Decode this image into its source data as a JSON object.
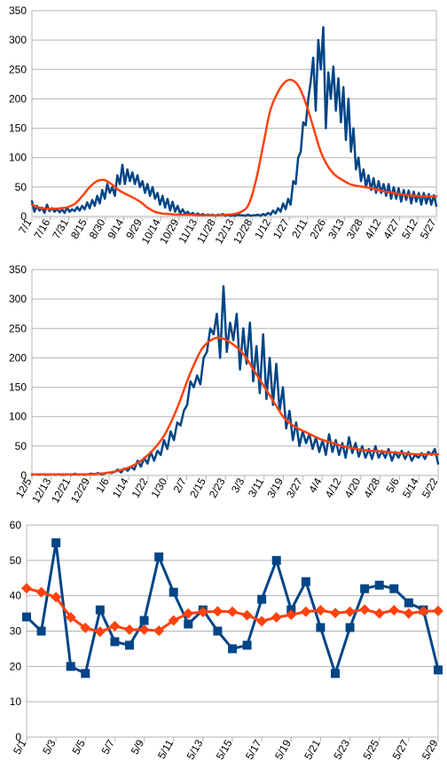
{
  "chart_data": [
    {
      "type": "line",
      "ylim": [
        0,
        350
      ],
      "yticks": [
        "0",
        "50",
        "100",
        "150",
        "200",
        "250",
        "300",
        "350"
      ],
      "xtick_labels": [
        "7/1",
        "7/16",
        "7/31",
        "8/15",
        "8/30",
        "9/14",
        "9/29",
        "10/14",
        "10/29",
        "11/13",
        "11/28",
        "12/13",
        "12/28",
        "1/12",
        "1/27",
        "2/11",
        "2/26",
        "3/13",
        "3/28",
        "4/12",
        "4/27",
        "5/12",
        "5/27"
      ],
      "grid": "horizontal",
      "series": [
        {
          "color": "#004586",
          "style": "line",
          "values": [
            26,
            8,
            18,
            10,
            15,
            6,
            20,
            9,
            14,
            8,
            13,
            7,
            12,
            6,
            15,
            8,
            12,
            9,
            16,
            10,
            18,
            12,
            24,
            14,
            28,
            18,
            35,
            22,
            45,
            30,
            55,
            40,
            50,
            35,
            70,
            55,
            88,
            55,
            80,
            60,
            75,
            55,
            70,
            50,
            60,
            40,
            55,
            35,
            50,
            30,
            40,
            20,
            35,
            15,
            30,
            10,
            25,
            8,
            18,
            5,
            12,
            4,
            8,
            3,
            6,
            2,
            5,
            2,
            4,
            2,
            3,
            2,
            3,
            1,
            3,
            2,
            4,
            1,
            3,
            1,
            2,
            1,
            3,
            2,
            2,
            1,
            3,
            1,
            2,
            2,
            3,
            1,
            4,
            2,
            6,
            3,
            10,
            5,
            14,
            8,
            22,
            12,
            30,
            20,
            60,
            55,
            100,
            110,
            160,
            155,
            200,
            230,
            270,
            180,
            300,
            250,
            322,
            150,
            245,
            200,
            255,
            180,
            235,
            160,
            220,
            130,
            200,
            110,
            150,
            80,
            100,
            60,
            80,
            50,
            70,
            45,
            65,
            40,
            60,
            40,
            55,
            35,
            55,
            30,
            50,
            30,
            48,
            25,
            45,
            28,
            44,
            22,
            42,
            25,
            40,
            20,
            40,
            22,
            38,
            20,
            36,
            18
          ]
        },
        {
          "color": "#ff420e",
          "style": "smooth",
          "values": [
            20,
            15,
            13,
            13,
            14,
            16,
            22,
            35,
            50,
            60,
            62,
            55,
            45,
            38,
            32,
            25,
            15,
            8,
            5,
            4,
            3,
            3,
            3,
            2,
            2,
            2,
            2,
            3,
            4,
            8,
            20,
            60,
            120,
            180,
            210,
            228,
            232,
            220,
            190,
            150,
            110,
            85,
            70,
            62,
            55,
            52,
            50,
            48,
            45,
            42,
            40,
            38,
            36,
            35,
            34,
            34,
            34
          ]
        }
      ]
    },
    {
      "type": "line",
      "ylim": [
        0,
        350
      ],
      "yticks": [
        "0",
        "50",
        "100",
        "150",
        "200",
        "250",
        "300",
        "350"
      ],
      "xtick_labels": [
        "12/5",
        "12/13",
        "12/21",
        "12/29",
        "1/6",
        "1/14",
        "1/22",
        "1/30",
        "2/7",
        "2/15",
        "2/23",
        "3/3",
        "3/11",
        "3/19",
        "3/27",
        "4/4",
        "4/12",
        "4/20",
        "4/28",
        "5/6",
        "5/14",
        "5/22"
      ],
      "grid": "horizontal",
      "series": [
        {
          "color": "#004586",
          "style": "line",
          "values": [
            1,
            2,
            1,
            2,
            1,
            1,
            2,
            1,
            2,
            1,
            1,
            2,
            1,
            3,
            1,
            2,
            1,
            2,
            3,
            2,
            4,
            2,
            3,
            5,
            4,
            6,
            10,
            5,
            12,
            8,
            15,
            10,
            25,
            15,
            30,
            20,
            40,
            25,
            42,
            35,
            60,
            45,
            75,
            60,
            90,
            85,
            110,
            120,
            160,
            150,
            170,
            155,
            200,
            210,
            250,
            240,
            275,
            200,
            322,
            210,
            260,
            230,
            275,
            180,
            250,
            190,
            260,
            160,
            220,
            140,
            240,
            130,
            200,
            120,
            190,
            110,
            150,
            80,
            110,
            60,
            90,
            50,
            75,
            55,
            70,
            45,
            65,
            40,
            60,
            35,
            70,
            40,
            60,
            35,
            55,
            30,
            65,
            38,
            55,
            32,
            50,
            30,
            45,
            28,
            50,
            30,
            42,
            30,
            45,
            25,
            40,
            30,
            42,
            28,
            40,
            25,
            35,
            30,
            38,
            28,
            40,
            35,
            45,
            20
          ]
        },
        {
          "color": "#ff420e",
          "style": "smooth",
          "values": [
            2,
            2,
            2,
            2,
            2,
            2,
            2,
            2,
            2,
            3,
            4,
            6,
            9,
            13,
            19,
            27,
            38,
            52,
            70,
            95,
            125,
            160,
            190,
            215,
            228,
            234,
            232,
            225,
            215,
            200,
            180,
            160,
            140,
            120,
            100,
            88,
            80,
            74,
            68,
            62,
            58,
            54,
            50,
            47,
            45,
            43,
            42,
            41,
            40,
            39,
            38,
            37,
            36,
            36,
            36,
            36
          ]
        }
      ]
    },
    {
      "type": "line",
      "ylim": [
        0,
        60
      ],
      "yticks": [
        "0",
        "10",
        "20",
        "30",
        "40",
        "50",
        "60"
      ],
      "xtick_labels": [
        "5/1",
        "5/3",
        "5/5",
        "5/7",
        "5/9",
        "5/11",
        "5/13",
        "5/15",
        "5/17",
        "5/19",
        "5/21",
        "5/23",
        "5/25",
        "5/27",
        "5/29"
      ],
      "grid": "horizontal",
      "series": [
        {
          "color": "#004586",
          "marker": "square",
          "values": [
            34,
            30,
            55,
            20,
            18,
            36,
            27,
            26,
            33,
            51,
            41,
            32,
            36,
            30,
            25,
            26,
            39,
            50,
            36,
            44,
            31,
            18,
            31,
            42,
            43,
            42,
            38,
            36,
            19
          ]
        },
        {
          "color": "#ff420e",
          "marker": "diamond",
          "values": [
            42.1,
            41,
            39.6,
            33.9,
            30.9,
            29.8,
            31.4,
            30.4,
            30.4,
            30.1,
            33,
            35,
            35.4,
            35.6,
            35.5,
            34.5,
            32.8,
            33.9,
            34.6,
            35.5,
            35.9,
            35.1,
            35.5,
            36.1,
            35,
            35.9,
            35,
            35.6,
            35.7
          ]
        }
      ]
    }
  ]
}
